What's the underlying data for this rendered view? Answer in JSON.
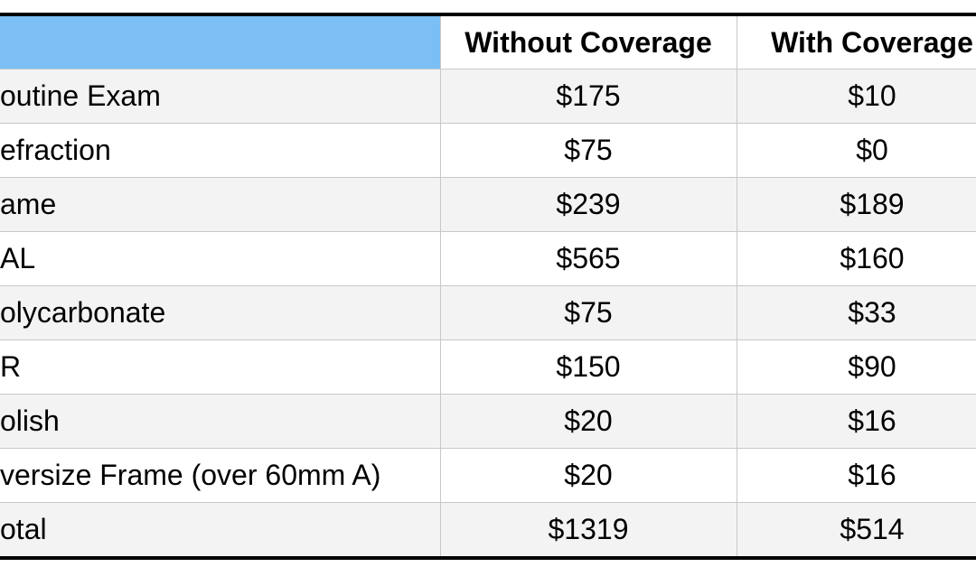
{
  "table": {
    "header": [
      "Without Coverage",
      "With Coverage"
    ],
    "rows": [
      [
        "outine Exam",
        "$175",
        "$10"
      ],
      [
        "efraction",
        "$75",
        "$0"
      ],
      [
        "ame",
        "$239",
        "$189"
      ],
      [
        "AL",
        "$565",
        "$160"
      ],
      [
        "olycarbonate",
        "$75",
        "$33"
      ],
      [
        "R",
        "$150",
        "$90"
      ],
      [
        "olish",
        "$20",
        "$16"
      ],
      [
        "versize Frame (over 60mm A)",
        "$20",
        "$16"
      ],
      [
        "otal",
        "$1319",
        "$514"
      ]
    ]
  }
}
